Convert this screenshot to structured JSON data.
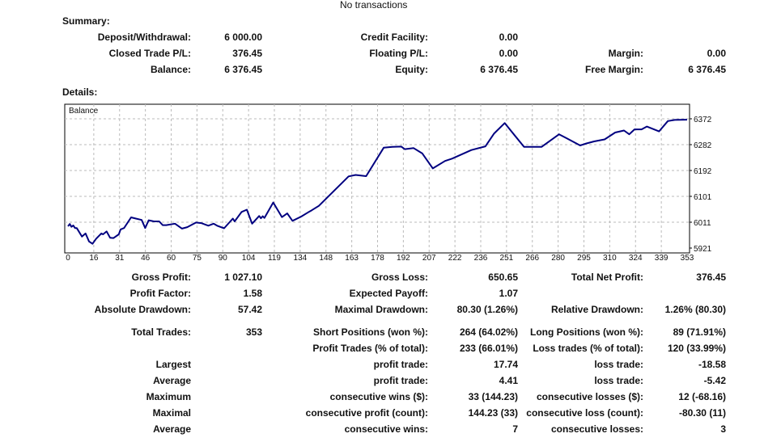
{
  "top_note": "No transactions",
  "summary": {
    "title": "Summary:",
    "rows": [
      [
        {
          "label": "Deposit/Withdrawal:",
          "value": "6 000.00"
        },
        {
          "label": "Credit Facility:",
          "value": "0.00"
        },
        {
          "label": "",
          "value": ""
        }
      ],
      [
        {
          "label": "Closed Trade P/L:",
          "value": "376.45"
        },
        {
          "label": "Floating P/L:",
          "value": "0.00"
        },
        {
          "label": "Margin:",
          "value": "0.00"
        }
      ],
      [
        {
          "label": "Balance:",
          "value": "6 376.45"
        },
        {
          "label": "Equity:",
          "value": "6 376.45"
        },
        {
          "label": "Free Margin:",
          "value": "6 376.45"
        }
      ]
    ]
  },
  "details": {
    "title": "Details:",
    "rows": [
      [
        {
          "label": "Gross Profit:",
          "value": "1 027.10"
        },
        {
          "label": "Gross Loss:",
          "value": "650.65"
        },
        {
          "label": "Total Net Profit:",
          "value": "376.45"
        }
      ],
      [
        {
          "label": "Profit Factor:",
          "value": "1.58"
        },
        {
          "label": "Expected Payoff:",
          "value": "1.07"
        },
        {
          "label": "",
          "value": ""
        }
      ],
      [
        {
          "label": "Absolute Drawdown:",
          "value": "57.42"
        },
        {
          "label": "Maximal Drawdown:",
          "value": "80.30 (1.26%)"
        },
        {
          "label": "Relative Drawdown:",
          "value": "1.26% (80.30)"
        }
      ],
      [
        {
          "label": "Total Trades:",
          "value": "353"
        },
        {
          "label": "Short Positions (won %):",
          "value": "264 (64.02%)"
        },
        {
          "label": "Long Positions (won %):",
          "value": "89 (71.91%)"
        }
      ],
      [
        {
          "label": "",
          "value": ""
        },
        {
          "label": "Profit Trades (% of total):",
          "value": "233 (66.01%)"
        },
        {
          "label": "Loss trades (% of total):",
          "value": "120 (33.99%)"
        }
      ],
      [
        {
          "label": "Largest",
          "value": ""
        },
        {
          "label": "profit trade:",
          "value": "17.74"
        },
        {
          "label": "loss trade:",
          "value": "-18.58"
        }
      ],
      [
        {
          "label": "Average",
          "value": ""
        },
        {
          "label": "profit trade:",
          "value": "4.41"
        },
        {
          "label": "loss trade:",
          "value": "-5.42"
        }
      ],
      [
        {
          "label": "Maximum",
          "value": ""
        },
        {
          "label": "consecutive wins ($):",
          "value": "33 (144.23)"
        },
        {
          "label": "consecutive losses ($):",
          "value": "12 (-68.16)"
        }
      ],
      [
        {
          "label": "Maximal",
          "value": ""
        },
        {
          "label": "consecutive profit (count):",
          "value": "144.23 (33)"
        },
        {
          "label": "consecutive loss (count):",
          "value": "-80.30 (11)"
        }
      ],
      [
        {
          "label": "Average",
          "value": ""
        },
        {
          "label": "consecutive wins:",
          "value": "7"
        },
        {
          "label": "consecutive losses:",
          "value": "3"
        }
      ]
    ]
  },
  "chart_data": {
    "type": "line",
    "title": "Balance",
    "line_color": "#000080",
    "grid": true,
    "xlim": [
      0,
      353
    ],
    "ylim": [
      5921,
      6372
    ],
    "x_ticks": [
      "0",
      "16",
      "31",
      "46",
      "60",
      "75",
      "90",
      "104",
      "119",
      "134",
      "148",
      "163",
      "178",
      "192",
      "207",
      "222",
      "236",
      "251",
      "266",
      "280",
      "295",
      "310",
      "324",
      "339",
      "353"
    ],
    "y_ticks": [
      "5921",
      "6011",
      "6101",
      "6192",
      "6282",
      "6372"
    ],
    "series": [
      {
        "x": [
          0,
          1,
          2,
          3,
          4,
          5,
          8,
          10,
          12,
          14,
          16,
          19,
          20,
          22,
          24,
          26,
          29,
          30,
          32,
          36,
          38,
          42,
          44,
          46,
          49,
          52,
          54,
          56,
          61,
          65,
          68,
          73,
          76,
          80,
          83,
          85,
          89,
          94,
          95,
          99,
          102,
          105,
          109,
          110,
          111,
          112,
          117,
          122,
          125,
          128,
          133,
          137,
          139,
          143,
          160,
          164,
          170,
          180,
          185,
          190,
          192,
          197,
          202,
          208,
          215,
          219,
          230,
          238,
          243,
          249,
          260,
          270,
          280,
          284,
          292,
          295,
          300,
          306,
          312,
          317,
          320,
          323,
          327,
          330,
          337,
          342,
          346,
          353
        ],
        "y": [
          5997,
          6005,
          5995,
          6000,
          5991,
          5991,
          5961,
          5972,
          5944,
          5936,
          5953,
          5972,
          5969,
          5979,
          5957,
          5956,
          5969,
          5986,
          5991,
          6028,
          6025,
          6019,
          5991,
          6018,
          6014,
          6014,
          6001,
          6001,
          6006,
          5989,
          5994,
          6010,
          6008,
          5999,
          6006,
          5999,
          5990,
          6024,
          6014,
          6047,
          6055,
          6006,
          6033,
          6025,
          6032,
          6026,
          6080,
          6029,
          6042,
          6016,
          6031,
          6046,
          6053,
          6068,
          6171,
          6176,
          6172,
          6271,
          6274,
          6275,
          6266,
          6270,
          6251,
          6199,
          6225,
          6233,
          6263,
          6276,
          6321,
          6357,
          6274,
          6274,
          6318,
          6305,
          6279,
          6285,
          6293,
          6300,
          6324,
          6331,
          6318,
          6335,
          6335,
          6345,
          6328,
          6364,
          6368,
          6369
        ]
      }
    ]
  }
}
